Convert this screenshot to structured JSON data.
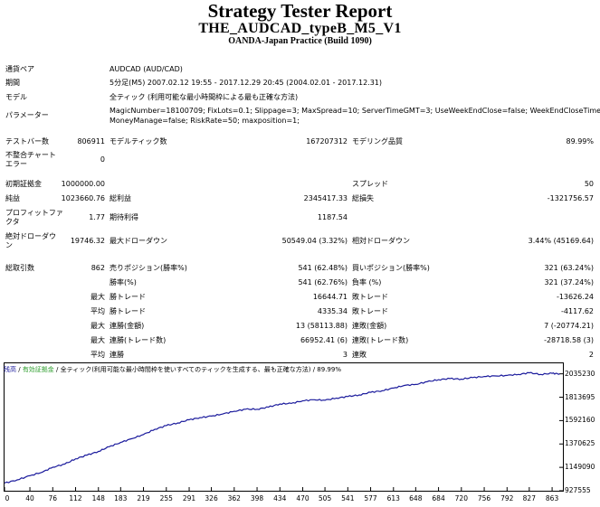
{
  "header": {
    "title": "Strategy Tester Report",
    "ea_name": "THE_AUDCAD_typeB_M5_V1",
    "server": "OANDA-Japan Practice (Build 1090)"
  },
  "settings": {
    "symbol_label": "通貨ペア",
    "symbol_value": "AUDCAD (AUD/CAD)",
    "period_label": "期間",
    "period_value": "5分足(M5) 2007.02.12 19:55 - 2017.12.29 20:45 (2004.02.01 - 2017.12.31)",
    "model_label": "モデル",
    "model_value": "全ティック (利用可能な最小時間枠による最も正確な方法)",
    "params_label": "パラメーター",
    "params_line1": "MagicNumber=18100709; FixLots=0.1; Slippage=3; MaxSpread=10; ServerTimeGMT=3; UseWeekEndClose=false; WeekEndCloseTime=-1;",
    "params_line2": "MoneyManage=false; RiskRate=50; maxposition=1;"
  },
  "stats": {
    "bars_label": "テストバー数",
    "bars_value": "806911",
    "ticks_label": "モデルティック数",
    "ticks_value": "167207312",
    "quality_label": "モデリング品質",
    "quality_value": "89.99%",
    "mismatch_label": "不整合チャート エラー",
    "mismatch_value": "0",
    "deposit_label": "初期証拠金",
    "deposit_value": "1000000.00",
    "spread_label": "スプレッド",
    "spread_value": "50",
    "net_label": "純益",
    "net_value": "1023660.76",
    "gross_profit_label": "総利益",
    "gross_profit_value": "2345417.33",
    "gross_loss_label": "総損失",
    "gross_loss_value": "-1321756.57",
    "pf_label": "プロフィットファ クタ",
    "pf_value": "1.77",
    "expected_label": "期待利得",
    "expected_value": "1187.54",
    "abs_dd_label": "絶対ドローダウ ン",
    "abs_dd_value": "19746.32",
    "max_dd_label": "最大ドローダウン",
    "max_dd_value": "50549.04 (3.32%)",
    "rel_dd_label": "相対ドローダウン",
    "rel_dd_value": "3.44% (45169.64)",
    "trades_label": "総取引数",
    "trades_value": "862",
    "short_label": "売りポジション(勝率%)",
    "short_value": "541 (62.48%)",
    "long_label": "買いポジション(勝率%)",
    "long_value": "321 (63.24%)",
    "win_label": "勝率(%)",
    "win_value": "541 (62.76%)",
    "loss_label": "負率 (%)",
    "loss_value": "321 (37.24%)",
    "max_label": "最大",
    "avg_label": "平均",
    "largest_win_label": "勝トレード",
    "largest_win_value": "16644.71",
    "largest_loss_label": "敗トレード",
    "largest_loss_value": "-13626.24",
    "avg_win_label": "勝トレード",
    "avg_win_value": "4335.34",
    "avg_loss_label": "敗トレード",
    "avg_loss_value": "-4117.62",
    "cons_wins_money_label": "連勝(金額)",
    "cons_wins_money_value": "13 (58113.88)",
    "cons_losses_money_label": "連敗(金額)",
    "cons_losses_money_value": "7 (-20774.21)",
    "cons_profit_label": "連勝(トレード数)",
    "cons_profit_value": "66952.41 (6)",
    "cons_loss_label": "連敗(トレード数)",
    "cons_loss_value": "-28718.58 (3)",
    "avg_cons_wins_label": "連勝",
    "avg_cons_wins_value": "3",
    "avg_cons_losses_label": "連敗",
    "avg_cons_losses_value": "2"
  },
  "chart_data": {
    "type": "line",
    "legend_balance": "残高",
    "legend_sep": " / ",
    "legend_equity": "有効証拠金",
    "legend_rest": " / 全ティック(利用可能な最小時間枠を使いすべてのティックを生成する、最も正確な方法) / 89.99%",
    "colors": {
      "balance": "#1a1a9c",
      "equity": "#2e9e2e",
      "axis": "#000000"
    },
    "y_ticks": [
      2035230,
      1813695,
      1592160,
      1370625,
      1149090,
      927555
    ],
    "x_ticks": [
      0,
      40,
      76,
      112,
      148,
      183,
      219,
      255,
      291,
      326,
      362,
      398,
      434,
      470,
      505,
      541,
      577,
      613,
      648,
      684,
      720,
      756,
      792,
      827,
      863
    ],
    "xlim": [
      0,
      880
    ],
    "ylim": [
      927555,
      2135000
    ],
    "series": [
      {
        "x": [
          0,
          20,
          40,
          60,
          76,
          95,
          112,
          130,
          148,
          165,
          183,
          200,
          219,
          237,
          255,
          273,
          291,
          308,
          326,
          344,
          362,
          380,
          398,
          416,
          434,
          452,
          470,
          488,
          505,
          523,
          541,
          559,
          577,
          595,
          613,
          630,
          648,
          666,
          684,
          702,
          720,
          738,
          756,
          774,
          792,
          810,
          827,
          845,
          863,
          875
        ],
        "values": [
          1000000,
          1030000,
          1070000,
          1105000,
          1150000,
          1180000,
          1230000,
          1265000,
          1300000,
          1345000,
          1385000,
          1420000,
          1460000,
          1510000,
          1545000,
          1570000,
          1600000,
          1620000,
          1635000,
          1655000,
          1680000,
          1700000,
          1700000,
          1720000,
          1750000,
          1755000,
          1780000,
          1790000,
          1785000,
          1805000,
          1820000,
          1835000,
          1860000,
          1875000,
          1900000,
          1925000,
          1935000,
          1960000,
          1980000,
          1990000,
          1985000,
          2000000,
          2010000,
          2015000,
          2020000,
          2030000,
          2045000,
          2030000,
          2040000,
          2035000
        ]
      }
    ]
  }
}
